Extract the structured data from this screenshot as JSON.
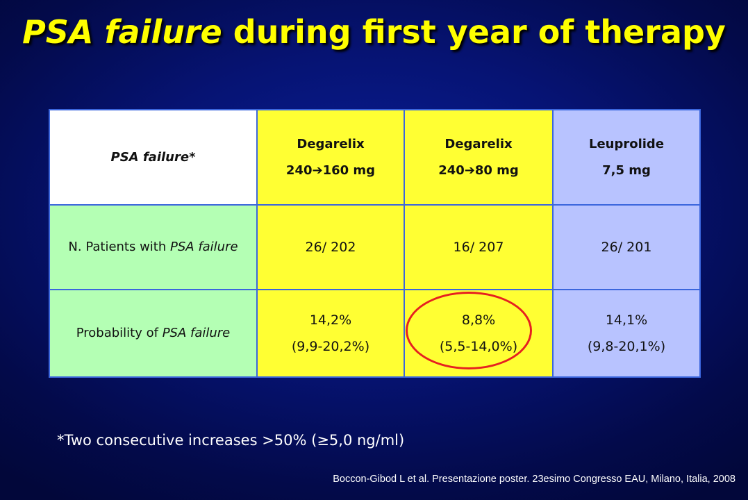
{
  "title": {
    "italic_part": "PSA failure",
    "rest": " during first year of therapy"
  },
  "table": {
    "header": {
      "label": "PSA failure*",
      "columns": [
        {
          "line1": "Degarelix",
          "line2": "240➔160 mg"
        },
        {
          "line1": "Degarelix",
          "line2": "240➔80 mg"
        },
        {
          "line1": "Leuprolide",
          "line2": "7,5 mg"
        }
      ]
    },
    "rows": [
      {
        "label_plain": "N. Patients with ",
        "label_italic": "PSA failure",
        "values": [
          {
            "line1": "26/ 202",
            "line2": ""
          },
          {
            "line1": "16/ 207",
            "line2": ""
          },
          {
            "line1": "26/ 201",
            "line2": ""
          }
        ]
      },
      {
        "label_plain": "Probability of ",
        "label_italic": "PSA failure",
        "values": [
          {
            "line1": "14,2%",
            "line2": "(9,9-20,2%)"
          },
          {
            "line1": "8,8%",
            "line2": "(5,5-14,0%)"
          },
          {
            "line1": "14,1%",
            "line2": "(9,8-20,1%)"
          }
        ]
      }
    ],
    "highlight_color": "#e62020"
  },
  "footnote": "*Two consecutive increases >50% (≥5,0 ng/ml)",
  "source": "Boccon-Gibod L et al. Presentazione poster. 23esimo Congresso EAU, Milano, Italia, 2008",
  "colors": {
    "title": "#ffff00",
    "background": "#061373",
    "header_label_cell": "#ffffff",
    "degarelix_cells": "#ffff33",
    "leuprolide_cells": "#b8c3ff",
    "row_label_cells": "#b4ffb4",
    "grid": "#3b66dd"
  }
}
